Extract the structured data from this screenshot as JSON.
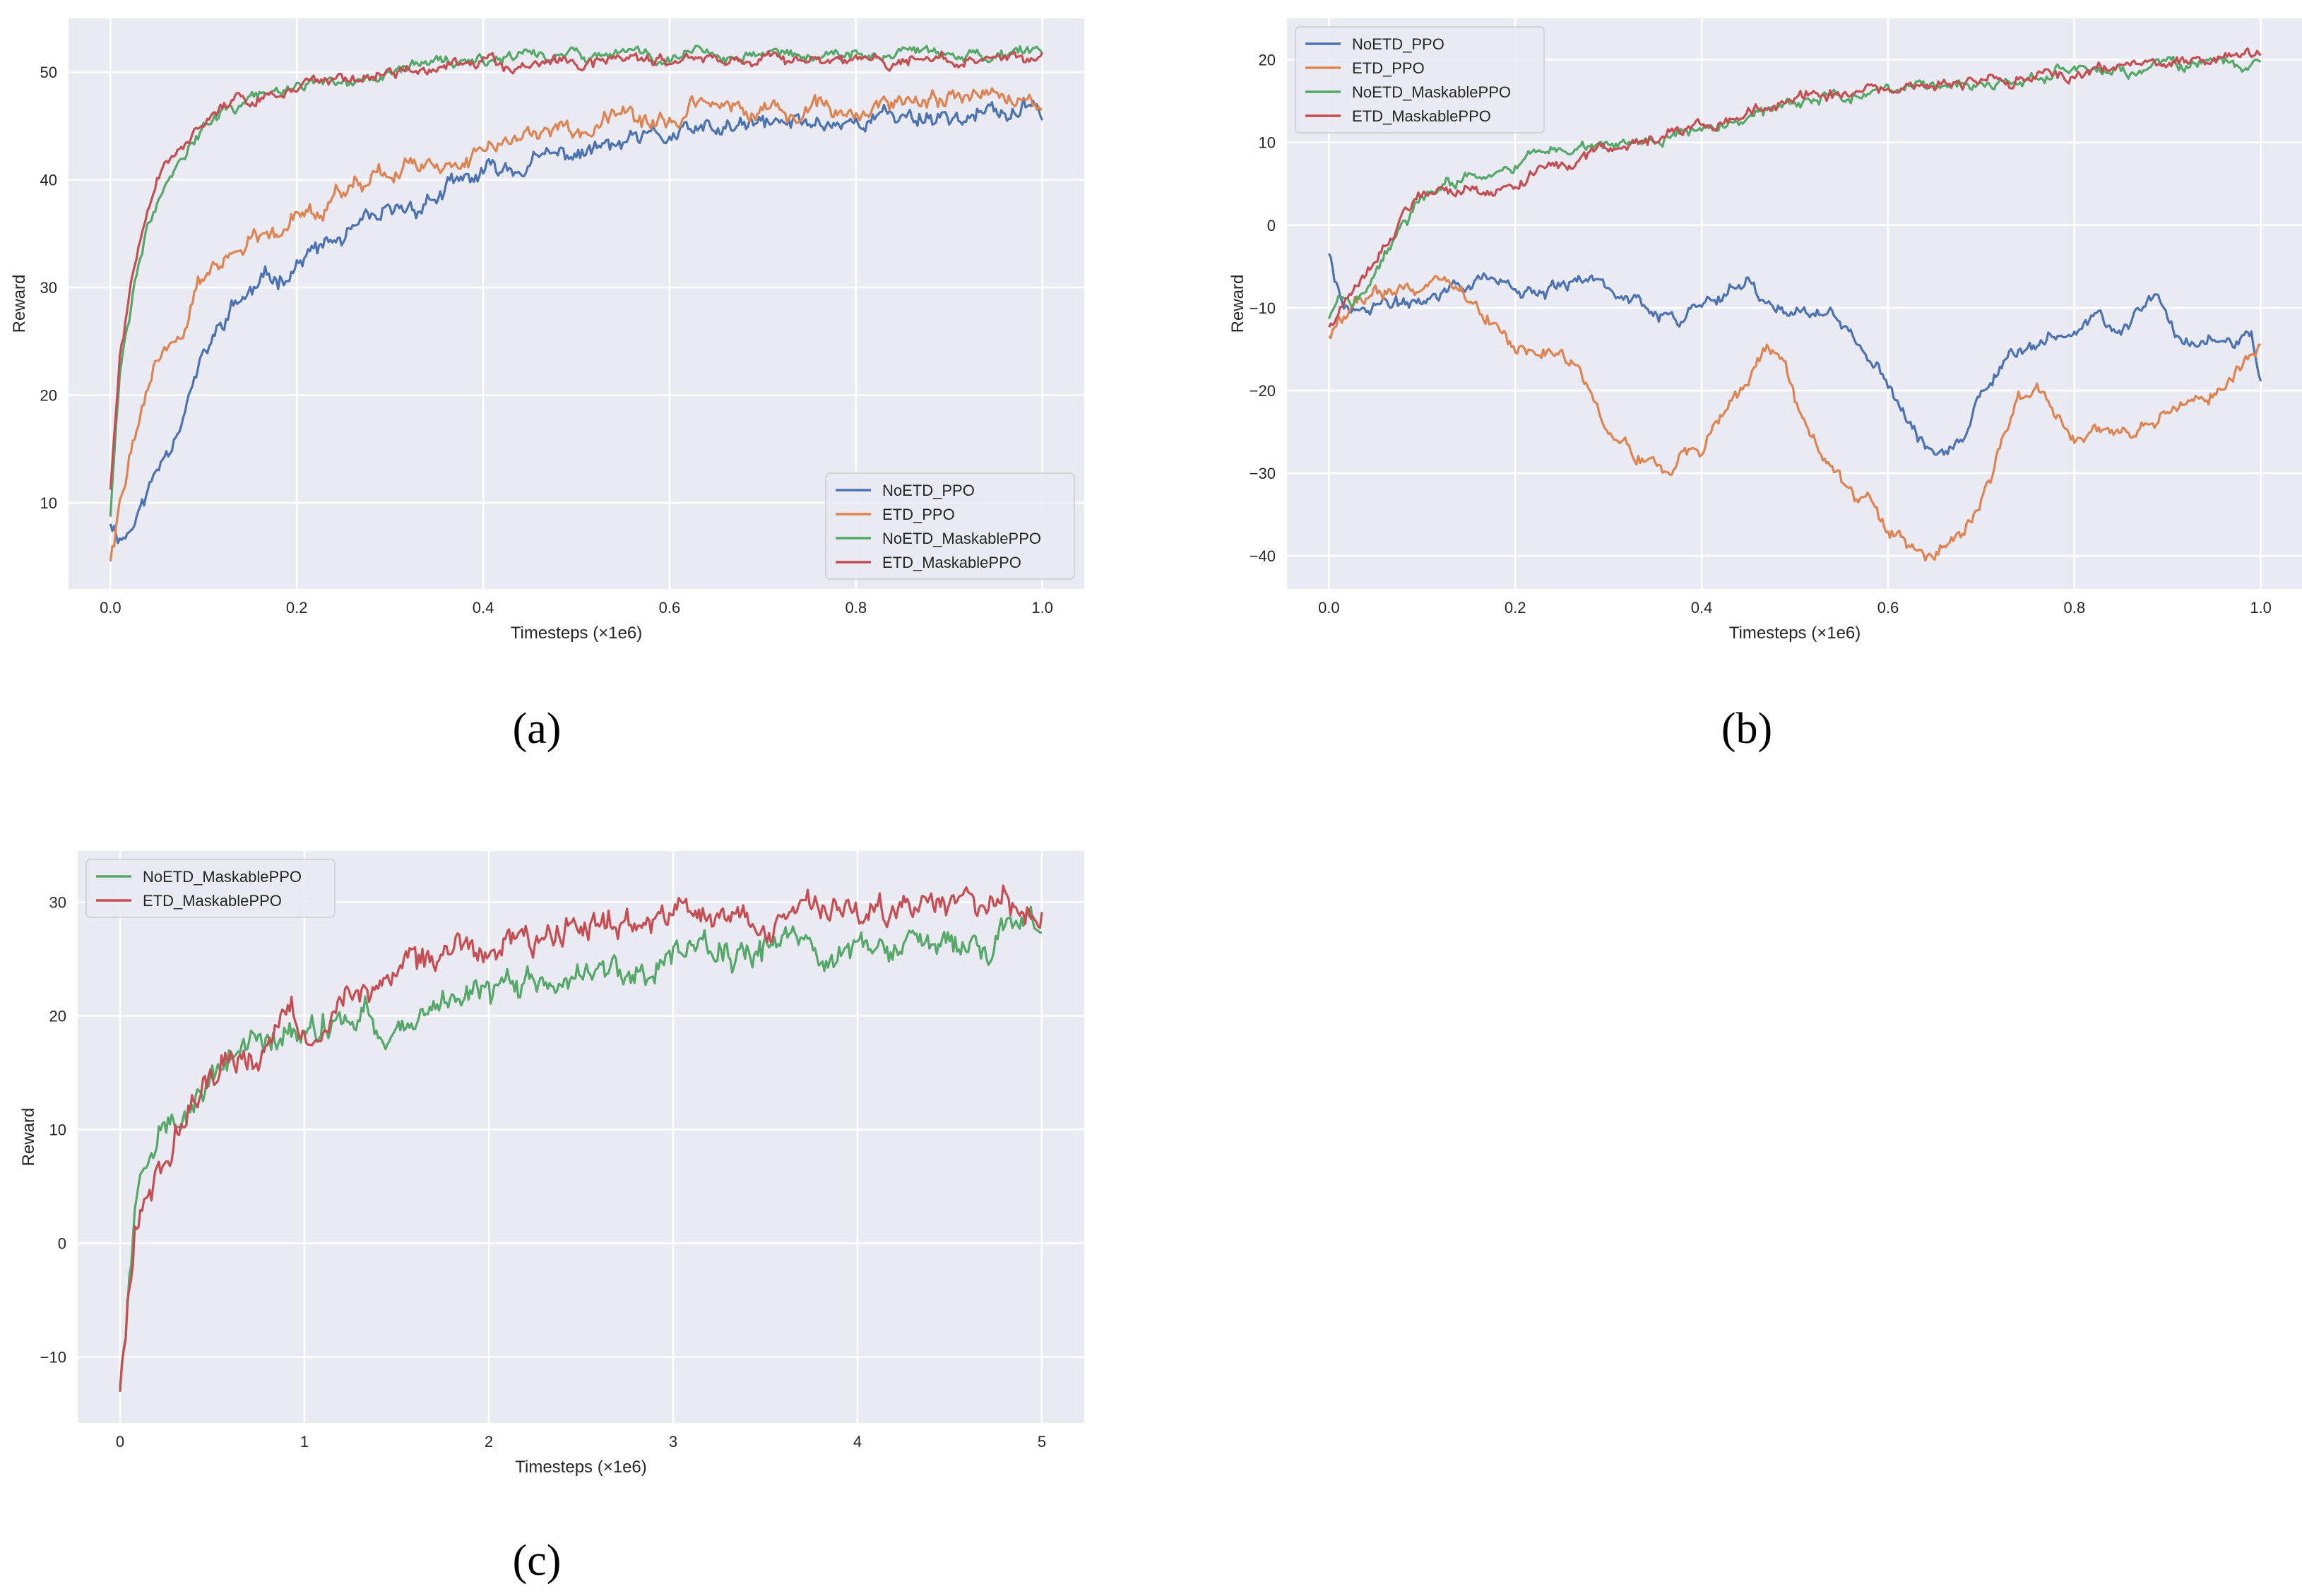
{
  "colors": {
    "background": "#eaeaf2",
    "grid": "#ffffff",
    "NoETD_PPO": "#4c72b0",
    "ETD_PPO": "#dd8452",
    "NoETD_MaskablePPO": "#55a868",
    "ETD_MaskablePPO": "#c44e52"
  },
  "chart_data": [
    {
      "id": "a",
      "caption": "(a)",
      "type": "line",
      "xlabel": "Timesteps (×1e6)",
      "ylabel": "Reward",
      "xlim": [
        -0.045,
        1.045
      ],
      "ylim": [
        2,
        55
      ],
      "xticks": [
        0.0,
        0.2,
        0.4,
        0.6,
        0.8,
        1.0
      ],
      "xtick_labels": [
        "0.0",
        "0.2",
        "0.4",
        "0.6",
        "0.8",
        "1.0"
      ],
      "yticks": [
        10,
        20,
        30,
        40,
        50
      ],
      "ytick_labels": [
        "10",
        "20",
        "30",
        "40",
        "50"
      ],
      "legend_position": "lower-right",
      "series": [
        {
          "name": "NoETD_PPO",
          "color_key": "NoETD_PPO",
          "noise": 0.7,
          "seed": 11,
          "x": [
            0,
            0.005,
            0.015,
            0.03,
            0.05,
            0.07,
            0.09,
            0.11,
            0.13,
            0.15,
            0.18,
            0.21,
            0.25,
            0.3,
            0.35,
            0.4,
            0.45,
            0.5,
            0.55,
            0.6,
            0.65,
            0.7,
            0.75,
            0.8,
            0.85,
            0.9,
            0.95,
            1.0
          ],
          "y": [
            8.5,
            7.5,
            7,
            9,
            13,
            17,
            21.5,
            25,
            28,
            29.5,
            31,
            33,
            34.5,
            36.5,
            38.5,
            40.5,
            41.5,
            42.5,
            43.2,
            44,
            44.5,
            45,
            45.3,
            45.6,
            46,
            46,
            46,
            46.5
          ]
        },
        {
          "name": "ETD_PPO",
          "color_key": "ETD_PPO",
          "noise": 0.7,
          "seed": 22,
          "x": [
            0,
            0.005,
            0.015,
            0.03,
            0.05,
            0.07,
            0.09,
            0.11,
            0.13,
            0.15,
            0.18,
            0.21,
            0.25,
            0.3,
            0.35,
            0.4,
            0.45,
            0.5,
            0.55,
            0.6,
            0.65,
            0.7,
            0.75,
            0.8,
            0.85,
            0.9,
            0.95,
            1.0
          ],
          "y": [
            5,
            7,
            12,
            18,
            23,
            25.5,
            29,
            31.5,
            33,
            34.5,
            36,
            37.5,
            39,
            40.5,
            42,
            43,
            44,
            44.8,
            45.3,
            45.8,
            46.2,
            46.5,
            46.8,
            47,
            47.2,
            47.4,
            47.5,
            47.5
          ]
        },
        {
          "name": "NoETD_MaskablePPO",
          "color_key": "NoETD_MaskablePPO",
          "noise": 0.45,
          "seed": 33,
          "x": [
            0,
            0.005,
            0.01,
            0.02,
            0.03,
            0.04,
            0.05,
            0.06,
            0.08,
            0.1,
            0.12,
            0.15,
            0.2,
            0.25,
            0.3,
            0.4,
            0.5,
            0.6,
            0.7,
            0.8,
            0.9,
            1.0
          ],
          "y": [
            9,
            16,
            22,
            27,
            32,
            36,
            38.5,
            40.5,
            43,
            45,
            46.3,
            47.5,
            48.8,
            49.7,
            50.3,
            51,
            51.3,
            51.5,
            51.6,
            51.7,
            51.7,
            51.5
          ]
        },
        {
          "name": "ETD_MaskablePPO",
          "color_key": "ETD_MaskablePPO",
          "noise": 0.45,
          "seed": 44,
          "x": [
            0,
            0.005,
            0.01,
            0.02,
            0.03,
            0.04,
            0.05,
            0.06,
            0.08,
            0.1,
            0.12,
            0.15,
            0.2,
            0.25,
            0.3,
            0.4,
            0.5,
            0.6,
            0.7,
            0.8,
            0.9,
            1.0
          ],
          "y": [
            11.5,
            17,
            23,
            29,
            34,
            37.5,
            40,
            41.5,
            43.5,
            45.2,
            46.3,
            47.5,
            48.8,
            49.5,
            50,
            50.5,
            50.8,
            51,
            51,
            51.1,
            51.1,
            51
          ]
        }
      ]
    },
    {
      "id": "b",
      "caption": "(b)",
      "type": "line",
      "xlabel": "Timesteps (×1e6)",
      "ylabel": "Reward",
      "xlim": [
        -0.045,
        1.045
      ],
      "ylim": [
        -44,
        25
      ],
      "xticks": [
        0.0,
        0.2,
        0.4,
        0.6,
        0.8,
        1.0
      ],
      "xtick_labels": [
        "0.0",
        "0.2",
        "0.4",
        "0.6",
        "0.8",
        "1.0"
      ],
      "yticks": [
        -40,
        -30,
        -20,
        -10,
        0,
        10,
        20
      ],
      "ytick_labels": [
        "−40",
        "−30",
        "−20",
        "−10",
        "0",
        "10",
        "20"
      ],
      "legend_position": "upper-left",
      "series": [
        {
          "name": "NoETD_PPO",
          "color_key": "NoETD_PPO",
          "noise": 0.7,
          "seed": 55,
          "x": [
            0,
            0.005,
            0.015,
            0.03,
            0.06,
            0.09,
            0.12,
            0.15,
            0.17,
            0.2,
            0.23,
            0.26,
            0.29,
            0.32,
            0.35,
            0.38,
            0.41,
            0.43,
            0.45,
            0.47,
            0.5,
            0.53,
            0.56,
            0.58,
            0.6,
            0.62,
            0.64,
            0.66,
            0.68,
            0.7,
            0.72,
            0.75,
            0.78,
            0.81,
            0.83,
            0.85,
            0.87,
            0.89,
            0.91,
            0.93,
            0.95,
            0.97,
            0.99,
            1.0
          ],
          "y": [
            -3,
            -5,
            -9,
            -11,
            -10,
            -9,
            -8,
            -6.5,
            -6,
            -8,
            -9,
            -7,
            -6.5,
            -8.5,
            -10,
            -11,
            -9,
            -7,
            -6,
            -9,
            -11,
            -11,
            -13,
            -16,
            -19,
            -23,
            -27,
            -28,
            -26,
            -20,
            -17,
            -15,
            -13,
            -12.5,
            -10.5,
            -14,
            -10,
            -7.5,
            -13,
            -15,
            -13.5,
            -14,
            -13,
            -19
          ]
        },
        {
          "name": "ETD_PPO",
          "color_key": "ETD_PPO",
          "noise": 0.7,
          "seed": 66,
          "x": [
            0,
            0.01,
            0.03,
            0.06,
            0.09,
            0.12,
            0.14,
            0.17,
            0.2,
            0.22,
            0.24,
            0.26,
            0.28,
            0.3,
            0.32,
            0.34,
            0.36,
            0.38,
            0.4,
            0.42,
            0.44,
            0.46,
            0.47,
            0.49,
            0.51,
            0.53,
            0.56,
            0.59,
            0.62,
            0.64,
            0.66,
            0.68,
            0.7,
            0.72,
            0.74,
            0.76,
            0.78,
            0.8,
            0.82,
            0.84,
            0.86,
            0.88,
            0.9,
            0.92,
            0.94,
            0.96,
            0.98,
            1.0
          ],
          "y": [
            -13,
            -11,
            -9,
            -8,
            -7.5,
            -6.5,
            -8,
            -11,
            -15,
            -15.5,
            -15,
            -16,
            -19,
            -24,
            -27,
            -29,
            -30,
            -28,
            -27,
            -24,
            -21,
            -16,
            -14,
            -17,
            -24,
            -28,
            -32,
            -35,
            -38,
            -40,
            -39,
            -38,
            -33,
            -27,
            -21,
            -20,
            -23,
            -26,
            -25,
            -24,
            -24.5,
            -23,
            -22,
            -23,
            -21,
            -19,
            -17,
            -14
          ]
        },
        {
          "name": "NoETD_MaskablePPO",
          "color_key": "NoETD_MaskablePPO",
          "noise": 0.55,
          "seed": 77,
          "x": [
            0,
            0.01,
            0.02,
            0.04,
            0.06,
            0.08,
            0.1,
            0.12,
            0.15,
            0.18,
            0.21,
            0.25,
            0.3,
            0.35,
            0.4,
            0.45,
            0.5,
            0.55,
            0.6,
            0.65,
            0.7,
            0.75,
            0.8,
            0.85,
            0.9,
            0.95,
            1.0
          ],
          "y": [
            -11,
            -9,
            -9.5,
            -8,
            -4,
            0,
            3,
            4.5,
            5.5,
            6.5,
            8,
            9,
            9.5,
            10,
            11.5,
            13,
            14.5,
            15.5,
            16,
            16.5,
            17.5,
            18,
            18.5,
            18.5,
            19,
            19.5,
            19.5
          ]
        },
        {
          "name": "ETD_MaskablePPO",
          "color_key": "ETD_MaskablePPO",
          "noise": 0.55,
          "seed": 88,
          "x": [
            0,
            0.01,
            0.02,
            0.04,
            0.06,
            0.08,
            0.1,
            0.12,
            0.15,
            0.18,
            0.21,
            0.25,
            0.3,
            0.35,
            0.4,
            0.45,
            0.5,
            0.55,
            0.6,
            0.65,
            0.7,
            0.75,
            0.8,
            0.85,
            0.9,
            0.95,
            1.0
          ],
          "y": [
            -12,
            -10,
            -8,
            -6,
            -2,
            1.5,
            3.5,
            4,
            4,
            4.5,
            5.5,
            7,
            9,
            10.5,
            12,
            13.5,
            15,
            16,
            16.5,
            17,
            17.5,
            18,
            18.5,
            19,
            19.5,
            20,
            20.5
          ]
        }
      ]
    },
    {
      "id": "c",
      "caption": "(c)",
      "type": "line",
      "xlabel": "Timesteps (×1e6)",
      "ylabel": "Reward",
      "xlim": [
        -0.23,
        5.23
      ],
      "ylim": [
        -15.8,
        34.5
      ],
      "xticks": [
        0,
        1,
        2,
        3,
        4,
        5
      ],
      "xtick_labels": [
        "0",
        "1",
        "2",
        "3",
        "4",
        "5"
      ],
      "yticks": [
        -10,
        0,
        10,
        20,
        30
      ],
      "ytick_labels": [
        "−10",
        "0",
        "10",
        "20",
        "30"
      ],
      "legend_position": "upper-left",
      "series": [
        {
          "name": "NoETD_MaskablePPO",
          "color_key": "NoETD_MaskablePPO",
          "noise": 1.1,
          "seed": 99,
          "x": [
            0,
            0.02,
            0.05,
            0.08,
            0.12,
            0.18,
            0.25,
            0.35,
            0.5,
            0.7,
            0.9,
            1.1,
            1.3,
            1.5,
            1.75,
            2,
            2.25,
            2.5,
            2.75,
            3,
            3.25,
            3.5,
            3.75,
            4,
            4.25,
            4.5,
            4.75,
            5
          ],
          "y": [
            -12,
            -9,
            -3,
            2,
            5,
            7,
            9,
            11,
            15,
            17.5,
            18.5,
            19.5,
            19.8,
            20.2,
            21,
            22,
            23,
            24,
            24.5,
            25,
            25.5,
            26,
            26.3,
            26.3,
            26.5,
            26.5,
            27,
            27
          ]
        },
        {
          "name": "ETD_MaskablePPO",
          "color_key": "ETD_MaskablePPO",
          "noise": 1.1,
          "seed": 111,
          "x": [
            0,
            0.02,
            0.05,
            0.08,
            0.12,
            0.18,
            0.25,
            0.35,
            0.5,
            0.7,
            0.9,
            1.1,
            1.3,
            1.5,
            1.75,
            2,
            2.25,
            2.5,
            2.75,
            3,
            3.25,
            3.5,
            3.75,
            4,
            4.25,
            4.5,
            4.75,
            5
          ],
          "y": [
            -12.5,
            -9.5,
            -4,
            1.5,
            4,
            6,
            8,
            10.5,
            14.5,
            17.5,
            19,
            20.5,
            22,
            23.5,
            25,
            26,
            27,
            28,
            28.2,
            28.4,
            28.6,
            28.8,
            29,
            29.3,
            29.6,
            30,
            30.2,
            30
          ]
        }
      ]
    }
  ]
}
